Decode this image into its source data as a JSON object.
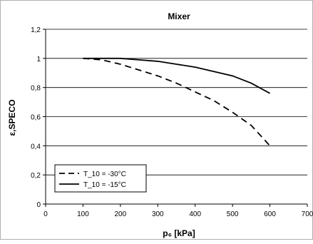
{
  "chart_data": {
    "type": "line",
    "title": "Mixer",
    "xlabel": "p₆ [kPa]",
    "ylabel": "ε,SPECO",
    "xlim": [
      0,
      700
    ],
    "ylim": [
      0,
      1.2
    ],
    "x_ticks": [
      "0",
      "100",
      "200",
      "300",
      "400",
      "500",
      "600",
      "700"
    ],
    "y_ticks": [
      "0",
      "0,2",
      "0,4",
      "0,6",
      "0,8",
      "1",
      "1,2"
    ],
    "grid": "horizontal",
    "legend_position": "bottom-left",
    "series": [
      {
        "name": "T_10 = -30°C",
        "style": "dashed",
        "color": "#000000",
        "x": [
          100,
          150,
          200,
          250,
          300,
          350,
          400,
          450,
          500,
          550,
          600
        ],
        "y": [
          1.0,
          0.99,
          0.96,
          0.92,
          0.88,
          0.83,
          0.77,
          0.71,
          0.63,
          0.54,
          0.4
        ]
      },
      {
        "name": "T_10 = -15°C",
        "style": "solid",
        "color": "#000000",
        "x": [
          100,
          150,
          200,
          250,
          300,
          350,
          400,
          450,
          500,
          550,
          600
        ],
        "y": [
          1.0,
          1.0,
          1.0,
          0.99,
          0.98,
          0.96,
          0.94,
          0.91,
          0.88,
          0.83,
          0.76
        ]
      }
    ]
  }
}
